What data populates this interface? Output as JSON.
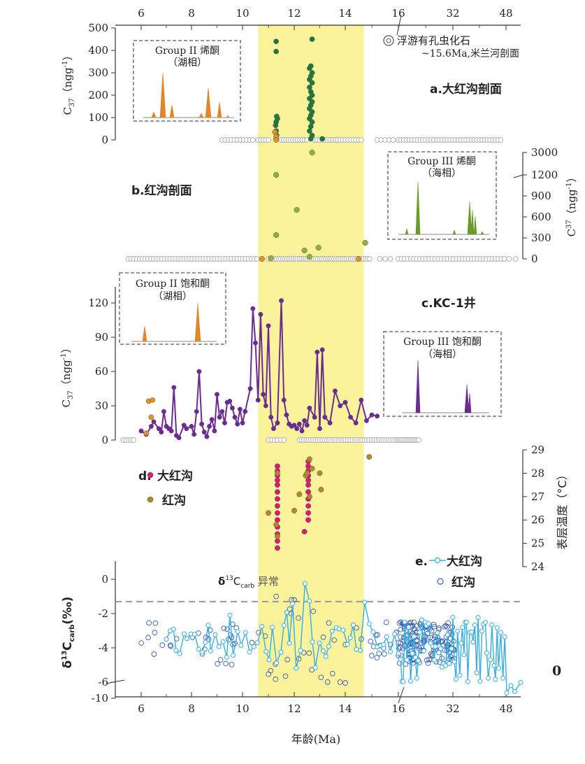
{
  "chart_data": {
    "type": "scatter",
    "x_axis": {
      "label": "年龄(Ma)",
      "ticks": [
        "6",
        "8",
        "10",
        "12",
        "14",
        "16",
        "32",
        "48"
      ],
      "range": [
        5,
        50
      ],
      "scale": "piecewise: linear 5–16 Ma, then compressed 16–50 Ma"
    },
    "highlight_band": {
      "x_start": 10.6,
      "x_end": 14.7,
      "color": "#faf39c"
    },
    "panels": [
      {
        "id": "a",
        "label": "a.大红沟剖面",
        "ylabel_main": "C",
        "ylabel_sub": "37",
        "ylabel_unit": "（ngg",
        "ylabel_exp": "-1",
        "ylabel_close": "）",
        "y_ticks": [
          "0",
          "100",
          "200",
          "300",
          "400",
          "500"
        ],
        "ylim": [
          0,
          500
        ],
        "series": [
          {
            "name": "Group III (marine)",
            "color": "#1f7a3a",
            "points": [
              [
                11.3,
                440
              ],
              [
                11.3,
                395
              ],
              [
                11.32,
                105
              ],
              [
                11.35,
                95
              ],
              [
                11.3,
                80
              ],
              [
                11.28,
                65
              ],
              [
                11.3,
                40
              ],
              [
                11.32,
                20
              ],
              [
                11.3,
                5
              ],
              [
                12.7,
                450
              ],
              [
                12.65,
                330
              ],
              [
                12.6,
                320
              ],
              [
                12.7,
                300
              ],
              [
                12.65,
                285
              ],
              [
                12.6,
                270
              ],
              [
                12.7,
                255
              ],
              [
                12.6,
                235
              ],
              [
                12.65,
                215
              ],
              [
                12.7,
                200
              ],
              [
                12.6,
                185
              ],
              [
                12.7,
                170
              ],
              [
                12.65,
                155
              ],
              [
                12.6,
                140
              ],
              [
                12.7,
                125
              ],
              [
                12.65,
                110
              ],
              [
                12.6,
                95
              ],
              [
                12.7,
                80
              ],
              [
                12.65,
                60
              ],
              [
                12.6,
                40
              ],
              [
                12.7,
                20
              ],
              [
                12.65,
                5
              ],
              [
                13.1,
                5
              ]
            ]
          },
          {
            "name": "Group II (lacustrine)",
            "color": "#e8901f",
            "points": [
              [
                11.25,
                35
              ],
              [
                11.3,
                15
              ],
              [
                11.3,
                0
              ]
            ]
          }
        ],
        "fossil_note": "浮游有孔虫化石",
        "fossil_note2": "~15.6Ma,米兰河剖面",
        "inset_title1": "Group II 烯酮",
        "inset_title2": "（湖相）"
      },
      {
        "id": "b",
        "label": "b.红沟剖面",
        "ylabel_main": "C",
        "ylabel_sub": "37",
        "ylabel_unit": "（ngg",
        "ylabel_exp": "-1",
        "ylabel_close": "）",
        "y_ticks": [
          "0",
          "300",
          "600",
          "900",
          "1200",
          "3000"
        ],
        "series": [
          {
            "name": "Group III (marine)",
            "color": "#8db33a",
            "points": [
              [
                12.7,
                3000
              ],
              [
                11.3,
                1200
              ],
              [
                12.1,
                700
              ],
              [
                11.3,
                340
              ],
              [
                12.4,
                120
              ],
              [
                12.95,
                160
              ],
              [
                14.75,
                230
              ],
              [
                11.1,
                10
              ],
              [
                12.6,
                30
              ]
            ]
          },
          {
            "name": "Group II (lacustrine)",
            "color": "#e8901f",
            "points": [
              [
                10.75,
                0
              ],
              [
                14.5,
                0
              ]
            ]
          }
        ],
        "inset_title1": "Group III 烯酮",
        "inset_title2": "（海相）"
      },
      {
        "id": "c",
        "label": "c.KC-1井",
        "ylabel_main": "C",
        "ylabel_sub": "37",
        "ylabel_unit": "（ngg",
        "ylabel_exp": "-1",
        "ylabel_close": "）",
        "y_ticks": [
          "0",
          "30",
          "60",
          "90",
          "120"
        ],
        "ylim": [
          0,
          135
        ],
        "line": {
          "color": "#6b2c91",
          "points": [
            [
              6.0,
              8
            ],
            [
              6.2,
              5
            ],
            [
              6.4,
              12
            ],
            [
              6.5,
              16
            ],
            [
              6.7,
              10
            ],
            [
              6.8,
              7
            ],
            [
              6.9,
              25
            ],
            [
              7.0,
              12
            ],
            [
              7.1,
              10
            ],
            [
              7.2,
              8
            ],
            [
              7.3,
              46
            ],
            [
              7.4,
              4
            ],
            [
              7.5,
              2
            ],
            [
              7.7,
              13
            ],
            [
              7.8,
              10
            ],
            [
              8.0,
              12
            ],
            [
              8.1,
              5
            ],
            [
              8.2,
              25
            ],
            [
              8.3,
              60
            ],
            [
              8.4,
              14
            ],
            [
              8.5,
              7
            ],
            [
              8.6,
              3
            ],
            [
              8.7,
              12
            ],
            [
              8.8,
              18
            ],
            [
              8.9,
              8
            ],
            [
              9.0,
              40
            ],
            [
              9.1,
              20
            ],
            [
              9.2,
              25
            ],
            [
              9.3,
              15
            ],
            [
              9.4,
              33
            ],
            [
              9.5,
              34
            ],
            [
              9.6,
              28
            ],
            [
              9.7,
              20
            ],
            [
              9.8,
              14
            ],
            [
              9.9,
              27
            ],
            [
              10.0,
              15
            ],
            [
              10.1,
              25
            ],
            [
              10.3,
              45
            ],
            [
              10.4,
              115
            ],
            [
              10.5,
              85
            ],
            [
              10.6,
              35
            ],
            [
              10.7,
              110
            ],
            [
              10.8,
              40
            ],
            [
              10.9,
              30
            ],
            [
              11.0,
              100
            ],
            [
              11.1,
              20
            ],
            [
              11.2,
              10
            ],
            [
              11.35,
              15
            ],
            [
              11.5,
              122
            ],
            [
              11.6,
              35
            ],
            [
              11.7,
              22
            ],
            [
              11.8,
              14
            ],
            [
              11.9,
              12
            ],
            [
              12.0,
              13
            ],
            [
              12.1,
              10
            ],
            [
              12.2,
              14
            ],
            [
              12.3,
              8
            ],
            [
              12.4,
              17
            ],
            [
              12.5,
              13
            ],
            [
              12.6,
              28
            ],
            [
              12.8,
              20
            ],
            [
              12.9,
              77
            ],
            [
              13.0,
              10
            ],
            [
              13.1,
              79
            ],
            [
              13.2,
              20
            ],
            [
              13.4,
              15
            ],
            [
              13.6,
              43
            ],
            [
              13.8,
              30
            ],
            [
              14.0,
              33
            ],
            [
              14.2,
              20
            ],
            [
              14.4,
              15
            ],
            [
              14.6,
              35
            ],
            [
              14.8,
              17
            ],
            [
              15.0,
              22
            ],
            [
              15.2,
              21
            ]
          ]
        },
        "orange_points": [
          [
            6.3,
            34
          ],
          [
            6.45,
            35
          ],
          [
            6.4,
            20
          ],
          [
            6.2,
            6
          ]
        ],
        "inset1_title1": "Group II 饱和酮",
        "inset1_title2": "（湖相）",
        "inset2_title1": "Group III 饱和酮",
        "inset2_title2": "（海相）"
      },
      {
        "id": "d",
        "ylabel": "表层温度（°C）",
        "y_ticks": [
          "24",
          "25",
          "26",
          "27",
          "28",
          "29"
        ],
        "ylim": [
          24,
          29
        ],
        "legend": [
          {
            "label": "大红沟",
            "color": "#e0186f"
          },
          {
            "label": "红沟",
            "color": "#b08a2a"
          }
        ],
        "series": [
          {
            "name": "大红沟",
            "color": "#e0186f",
            "points": [
              [
                11.35,
                28.3
              ],
              [
                11.35,
                28.1
              ],
              [
                11.35,
                27.9
              ],
              [
                11.35,
                27.7
              ],
              [
                11.35,
                27.5
              ],
              [
                11.35,
                27.2
              ],
              [
                11.35,
                26.9
              ],
              [
                11.35,
                26.6
              ],
              [
                11.35,
                26.3
              ],
              [
                11.35,
                26.0
              ],
              [
                11.35,
                25.7
              ],
              [
                11.35,
                25.4
              ],
              [
                11.35,
                25.1
              ],
              [
                11.35,
                24.8
              ],
              [
                12.55,
                28.5
              ],
              [
                12.55,
                28.3
              ],
              [
                12.55,
                28.1
              ],
              [
                12.55,
                27.9
              ],
              [
                12.55,
                27.7
              ],
              [
                12.55,
                27.5
              ],
              [
                12.55,
                27.2
              ],
              [
                12.55,
                26.9
              ],
              [
                12.55,
                26.6
              ],
              [
                12.55,
                26.3
              ],
              [
                12.55,
                26.0
              ],
              [
                12.4,
                25.5
              ]
            ]
          },
          {
            "name": "红沟",
            "color": "#b08a2a",
            "points": [
              [
                11.0,
                26.3
              ],
              [
                11.35,
                25.3
              ],
              [
                11.3,
                25.8
              ],
              [
                12.0,
                26.4
              ],
              [
                12.2,
                27.1
              ],
              [
                12.45,
                27.9
              ],
              [
                12.5,
                28.0
              ],
              [
                12.7,
                28.2
              ],
              [
                12.6,
                27.0
              ],
              [
                13.0,
                28.0
              ],
              [
                13.05,
                27.3
              ],
              [
                14.9,
                28.7
              ],
              [
                11.35,
                28.0
              ],
              [
                12.6,
                28.6
              ]
            ]
          }
        ]
      },
      {
        "id": "e",
        "ylabel_main": "δ",
        "ylabel_sup": "13",
        "ylabel_mid": "C",
        "ylabel_sub": "carb",
        "ylabel_unit": "(‰)",
        "y_ticks": [
          "-10",
          "-6",
          "-4",
          "-2",
          "0"
        ],
        "ylim": [
          -10,
          1
        ],
        "legend": [
          {
            "label": "大红沟",
            "color": "#35aee0",
            "marker": "line-circle"
          },
          {
            "label": "红沟",
            "color": "#3a5fb0",
            "marker": "open-circle"
          }
        ],
        "anomaly_main": "δ",
        "anomaly_sup": "13",
        "anomaly_mid": "C",
        "anomaly_sub": "carb",
        "anomaly_tail": " 异常",
        "threshold": -1.3,
        "side_mark": "0"
      }
    ],
    "legend_labels": {
      "e_prefix": "e.",
      "d_prefix": "d."
    }
  }
}
